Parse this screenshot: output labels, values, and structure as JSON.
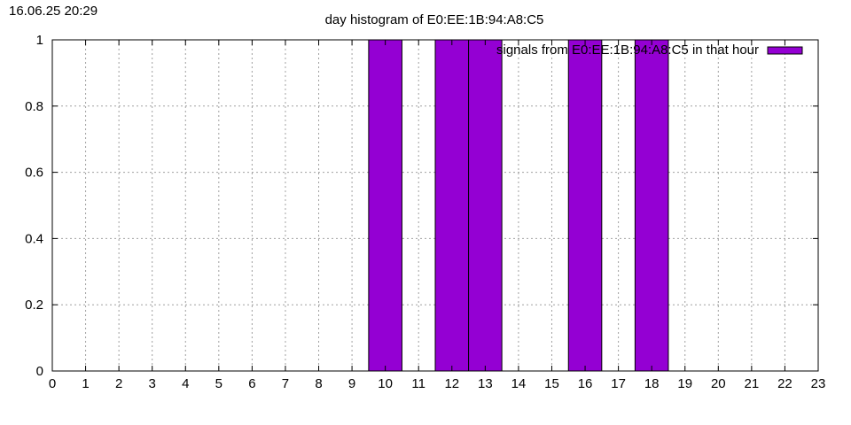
{
  "timestamp": "16.06.25 20:29",
  "chart_data": {
    "type": "bar",
    "title": "day histogram of E0:EE:1B:94:A8:C5",
    "xlabel": "",
    "ylabel": "",
    "xlim": [
      0,
      23
    ],
    "ylim": [
      0,
      1
    ],
    "x_ticks": [
      0,
      1,
      2,
      3,
      4,
      5,
      6,
      7,
      8,
      9,
      10,
      11,
      12,
      13,
      14,
      15,
      16,
      17,
      18,
      19,
      20,
      21,
      22,
      23
    ],
    "y_ticks": [
      0,
      0.2,
      0.4,
      0.6,
      0.8,
      1
    ],
    "y_tick_labels": [
      "0",
      "0.2",
      "0.4",
      "0.6",
      "0.8",
      "1"
    ],
    "grid": true,
    "legend_position": "top-right",
    "series": [
      {
        "name": "signals from E0:EE:1B:94:A8:C5 in that hour",
        "color": "#9400d3",
        "x": [
          0,
          1,
          2,
          3,
          4,
          5,
          6,
          7,
          8,
          9,
          10,
          11,
          12,
          13,
          14,
          15,
          16,
          17,
          18,
          19,
          20,
          21,
          22,
          23
        ],
        "values": [
          0,
          0,
          0,
          0,
          0,
          0,
          0,
          0,
          0,
          0,
          1,
          0,
          1,
          1,
          0,
          0,
          1,
          0,
          1,
          0,
          0,
          0,
          0,
          0
        ]
      }
    ]
  }
}
